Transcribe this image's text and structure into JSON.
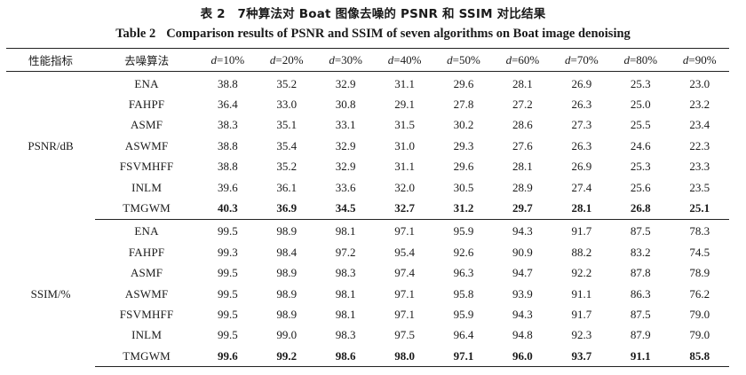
{
  "caption_cn": "表 2　7种算法对 Boat 图像去噪的 PSNR 和 SSIM 对比结果",
  "caption_en_num": "Table 2",
  "caption_en_text": "Comparison results of PSNR and SSIM of seven algorithms on Boat image denoising",
  "header": {
    "metric": "性能指标",
    "method": "去噪算法",
    "levels": [
      "d=10%",
      "d=20%",
      "d=30%",
      "d=40%",
      "d=50%",
      "d=60%",
      "d=70%",
      "d=80%",
      "d=90%"
    ]
  },
  "groups": [
    {
      "metric": "PSNR/dB",
      "rows": [
        {
          "method": "ENA",
          "values": [
            "38.8",
            "35.2",
            "32.9",
            "31.1",
            "29.6",
            "28.1",
            "26.9",
            "25.3",
            "23.0"
          ]
        },
        {
          "method": "FAHPF",
          "values": [
            "36.4",
            "33.0",
            "30.8",
            "29.1",
            "27.8",
            "27.2",
            "26.3",
            "25.0",
            "23.2"
          ]
        },
        {
          "method": "ASMF",
          "values": [
            "38.3",
            "35.1",
            "33.1",
            "31.5",
            "30.2",
            "28.6",
            "27.3",
            "25.5",
            "23.4"
          ]
        },
        {
          "method": "ASWMF",
          "values": [
            "38.8",
            "35.4",
            "32.9",
            "31.0",
            "29.3",
            "27.6",
            "26.3",
            "24.6",
            "22.3"
          ]
        },
        {
          "method": "FSVMHFF",
          "values": [
            "38.8",
            "35.2",
            "32.9",
            "31.1",
            "29.6",
            "28.1",
            "26.9",
            "25.3",
            "23.3"
          ]
        },
        {
          "method": "INLM",
          "values": [
            "39.6",
            "36.1",
            "33.6",
            "32.0",
            "30.5",
            "28.9",
            "27.4",
            "25.6",
            "23.5"
          ]
        },
        {
          "method": "TMGWM",
          "values": [
            "40.3",
            "36.9",
            "34.5",
            "32.7",
            "31.2",
            "29.7",
            "28.1",
            "26.8",
            "25.1"
          ],
          "bold": true
        }
      ]
    },
    {
      "metric": "SSIM/%",
      "rows": [
        {
          "method": "ENA",
          "values": [
            "99.5",
            "98.9",
            "98.1",
            "97.1",
            "95.9",
            "94.3",
            "91.7",
            "87.5",
            "78.3"
          ]
        },
        {
          "method": "FAHPF",
          "values": [
            "99.3",
            "98.4",
            "97.2",
            "95.4",
            "92.6",
            "90.9",
            "88.2",
            "83.2",
            "74.5"
          ]
        },
        {
          "method": "ASMF",
          "values": [
            "99.5",
            "98.9",
            "98.3",
            "97.4",
            "96.3",
            "94.7",
            "92.2",
            "87.8",
            "78.9"
          ]
        },
        {
          "method": "ASWMF",
          "values": [
            "99.5",
            "98.9",
            "98.1",
            "97.1",
            "95.8",
            "93.9",
            "91.1",
            "86.3",
            "76.2"
          ]
        },
        {
          "method": "FSVMHFF",
          "values": [
            "99.5",
            "98.9",
            "98.1",
            "97.1",
            "95.9",
            "94.3",
            "91.7",
            "87.5",
            "79.0"
          ]
        },
        {
          "method": "INLM",
          "values": [
            "99.5",
            "99.0",
            "98.3",
            "97.5",
            "96.4",
            "94.8",
            "92.3",
            "87.9",
            "79.0"
          ]
        },
        {
          "method": "TMGWM",
          "values": [
            "99.6",
            "99.2",
            "98.6",
            "98.0",
            "97.1",
            "96.0",
            "93.7",
            "91.1",
            "85.8"
          ],
          "bold": true
        }
      ]
    }
  ]
}
